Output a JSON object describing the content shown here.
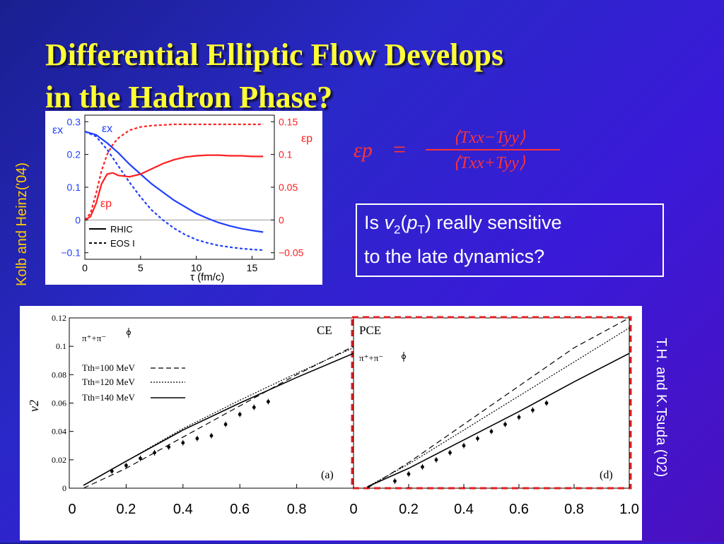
{
  "slide": {
    "title_line1": "Differential Elliptic Flow Develops",
    "title_line2": "in the Hadron Phase?",
    "credit_left": "Kolb and Heinz('04)",
    "credit_right": "T.H. and K.Tsuda ('02)",
    "question_line1_prefix": "Is ",
    "question_v": "v",
    "question_sub2": "2",
    "question_p": "p",
    "question_subT": "T",
    "question_line1_suffix": ") really sensitive",
    "question_line2": "to the late dynamics?",
    "formula": {
      "lhs": "εp",
      "eq": "=",
      "numerator": "⟨Txx−Tyy⟩",
      "denominator": "⟨Txx+Tyy⟩"
    },
    "colors": {
      "title": "#ffff33",
      "credit_left": "#ffcc00",
      "formula": "#ff3333",
      "blue_curve": "#1f3fff",
      "red_curve": "#ff2020",
      "dashed_box": "#e02020"
    }
  },
  "chart_data": [
    {
      "type": "line",
      "xlabel": "τ (fm/c)",
      "x_ticks": [
        "0",
        "5",
        "10",
        "15"
      ],
      "xlim": [
        0,
        17
      ],
      "left_axis": {
        "label": "εx",
        "ticks": [
          "0.3",
          "0.2",
          "0.1",
          "0",
          "−0.1"
        ],
        "ylim": [
          -0.12,
          0.32
        ]
      },
      "right_axis": {
        "label": "εp",
        "ticks": [
          "0.15",
          "0.1",
          "0.05",
          "0",
          "−0.05"
        ],
        "ylim": [
          -0.06,
          0.16
        ]
      },
      "curve_labels": [
        "εx",
        "εp"
      ],
      "legend": [
        "RHIC",
        "EOS I"
      ],
      "series": [
        {
          "name": "εx",
          "style": "solid",
          "color": "#1f3fff",
          "axis": "left",
          "x": [
            0,
            1,
            2,
            3,
            4,
            5,
            6,
            7,
            8,
            9,
            10,
            11,
            12,
            13,
            14,
            15,
            16
          ],
          "y": [
            0.27,
            0.26,
            0.235,
            0.205,
            0.17,
            0.14,
            0.11,
            0.085,
            0.06,
            0.04,
            0.02,
            0.005,
            -0.008,
            -0.018,
            -0.026,
            -0.032,
            -0.037
          ]
        },
        {
          "name": "εx",
          "style": "dashed",
          "color": "#1f3fff",
          "axis": "left",
          "x": [
            0,
            1,
            2,
            3,
            4,
            5,
            6,
            7,
            8,
            9,
            10,
            11,
            12,
            13,
            14,
            15,
            16
          ],
          "y": [
            0.27,
            0.255,
            0.215,
            0.165,
            0.115,
            0.07,
            0.03,
            0.0,
            -0.025,
            -0.045,
            -0.06,
            -0.07,
            -0.078,
            -0.083,
            -0.087,
            -0.09,
            -0.092
          ]
        },
        {
          "name": "εp",
          "style": "solid",
          "color": "#ff2020",
          "axis": "right",
          "x": [
            0,
            0.5,
            1,
            1.5,
            2,
            2.5,
            3,
            4,
            5,
            6,
            7,
            8,
            9,
            10,
            11,
            12,
            13,
            14,
            15,
            16
          ],
          "y": [
            0,
            0.005,
            0.025,
            0.055,
            0.07,
            0.072,
            0.068,
            0.066,
            0.07,
            0.078,
            0.086,
            0.092,
            0.096,
            0.098,
            0.099,
            0.099,
            0.098,
            0.098,
            0.097,
            0.097
          ]
        },
        {
          "name": "εp",
          "style": "dashed",
          "color": "#ff2020",
          "axis": "right",
          "x": [
            0,
            0.5,
            1,
            1.5,
            2,
            2.5,
            3,
            4,
            5,
            6,
            7,
            8,
            10,
            12,
            14,
            16
          ],
          "y": [
            0,
            0.01,
            0.04,
            0.075,
            0.1,
            0.115,
            0.125,
            0.137,
            0.142,
            0.144,
            0.145,
            0.146,
            0.146,
            0.146,
            0.146,
            0.146
          ]
        }
      ]
    },
    {
      "type": "line",
      "panel_label": "CE",
      "corner_label": "(a)",
      "particle_label": "π⁺+π⁻",
      "ylabel": "v2",
      "y_ticks": [
        "0.12",
        "0.1",
        "0.08",
        "0.06",
        "0.04",
        "0.02",
        "0"
      ],
      "ylim": [
        0,
        0.12
      ],
      "x_ticks": [
        "0",
        "0.2",
        "0.4",
        "0.6",
        "0.8"
      ],
      "xlim": [
        0,
        1.0
      ],
      "legend": [
        "Tth=100 MeV",
        "Tth=120 MeV",
        "Tth=140 MeV"
      ],
      "series": [
        {
          "name": "Tth=100 MeV",
          "style": "longdash",
          "x": [
            0.05,
            0.2,
            0.4,
            0.6,
            0.8,
            1.0
          ],
          "y": [
            0.0,
            0.014,
            0.036,
            0.058,
            0.08,
            0.1
          ]
        },
        {
          "name": "Tth=120 MeV",
          "style": "dotted",
          "x": [
            0.05,
            0.2,
            0.4,
            0.6,
            0.8,
            1.0
          ],
          "y": [
            0.002,
            0.019,
            0.042,
            0.062,
            0.081,
            0.099
          ]
        },
        {
          "name": "Tth=140 MeV",
          "style": "solid",
          "x": [
            0.05,
            0.2,
            0.4,
            0.6,
            0.8,
            1.0
          ],
          "y": [
            0.002,
            0.019,
            0.041,
            0.06,
            0.078,
            0.095
          ]
        }
      ],
      "data_points": {
        "x": [
          0.15,
          0.2,
          0.25,
          0.3,
          0.35,
          0.4,
          0.45,
          0.5,
          0.55,
          0.6,
          0.65,
          0.7
        ],
        "y": [
          0.012,
          0.016,
          0.021,
          0.025,
          0.029,
          0.032,
          0.035,
          0.037,
          0.045,
          0.052,
          0.057,
          0.061
        ]
      }
    },
    {
      "type": "line",
      "panel_label": "PCE",
      "corner_label": "(d)",
      "particle_label": "π⁺+π⁻",
      "x_ticks": [
        "0",
        "0.2",
        "0.4",
        "0.6",
        "0.8",
        "1.0"
      ],
      "xlim": [
        0,
        1.0
      ],
      "ylim": [
        0,
        0.12
      ],
      "series": [
        {
          "name": "Tth=100 MeV",
          "style": "longdash",
          "x": [
            0.05,
            0.2,
            0.4,
            0.6,
            0.8,
            1.0
          ],
          "y": [
            0.0,
            0.018,
            0.045,
            0.072,
            0.099,
            0.126
          ]
        },
        {
          "name": "Tth=120 MeV",
          "style": "dotted",
          "x": [
            0.05,
            0.2,
            0.4,
            0.6,
            0.8,
            1.0
          ],
          "y": [
            0.001,
            0.017,
            0.041,
            0.065,
            0.089,
            0.113
          ]
        },
        {
          "name": "Tth=140 MeV",
          "style": "solid",
          "x": [
            0.05,
            0.2,
            0.4,
            0.6,
            0.8,
            1.0
          ],
          "y": [
            0.001,
            0.014,
            0.034,
            0.054,
            0.075,
            0.095
          ]
        }
      ],
      "data_points": {
        "x": [
          0.15,
          0.2,
          0.25,
          0.3,
          0.35,
          0.4,
          0.45,
          0.5,
          0.55,
          0.6,
          0.65,
          0.7
        ],
        "y": [
          0.005,
          0.01,
          0.015,
          0.02,
          0.025,
          0.03,
          0.035,
          0.04,
          0.045,
          0.05,
          0.055,
          0.06
        ]
      }
    }
  ]
}
